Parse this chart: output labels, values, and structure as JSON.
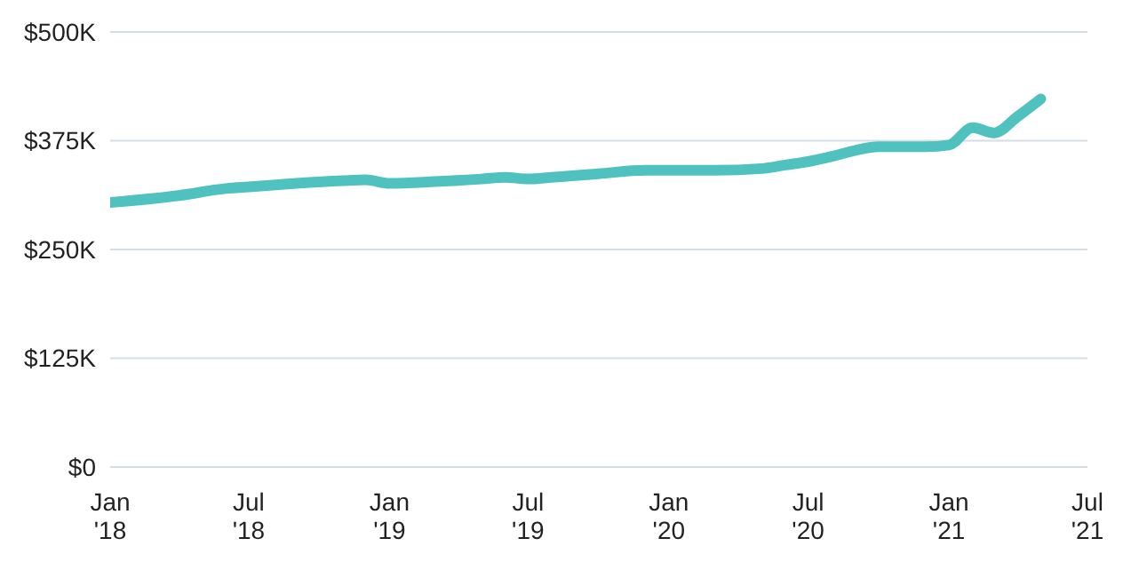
{
  "chart_data": {
    "type": "line",
    "x": [
      "2018-01",
      "2018-04",
      "2018-06",
      "2018-07",
      "2018-09",
      "2018-11",
      "2018-12",
      "2019-01",
      "2019-03",
      "2019-05",
      "2019-06",
      "2019-07",
      "2019-08",
      "2019-10",
      "2019-12",
      "2020-01",
      "2020-03",
      "2020-05",
      "2020-06",
      "2020-07",
      "2020-08",
      "2020-09",
      "2020-10",
      "2020-11",
      "2020-12",
      "2021-01",
      "2021-02",
      "2021-03",
      "2021-04",
      "2021-05"
    ],
    "series": [
      {
        "color": "#4fc1bf",
        "values": [
          304000,
          312000,
          320000,
          322000,
          326000,
          329000,
          330000,
          326000,
          328000,
          331000,
          333000,
          331000,
          333000,
          337000,
          341000,
          341000,
          341000,
          343000,
          347000,
          351000,
          357000,
          364000,
          368000,
          368000,
          368000,
          370000,
          390000,
          384000,
          403000,
          423000
        ]
      }
    ],
    "xlim": [
      "2018-01",
      "2021-07"
    ],
    "xticks": [
      {
        "value": "2018-01",
        "label": "Jan '18"
      },
      {
        "value": "2018-07",
        "label": "Jul '18"
      },
      {
        "value": "2019-01",
        "label": "Jan '19"
      },
      {
        "value": "2019-07",
        "label": "Jul '19"
      },
      {
        "value": "2020-01",
        "label": "Jan '20"
      },
      {
        "value": "2020-07",
        "label": "Jul '20"
      },
      {
        "value": "2021-01",
        "label": "Jan '21"
      },
      {
        "value": "2021-07",
        "label": "Jul '21"
      }
    ],
    "ylim": [
      0,
      500000
    ],
    "yticks": [
      {
        "value": 0,
        "label": "$0"
      },
      {
        "value": 125000,
        "label": "$125K"
      },
      {
        "value": 250000,
        "label": "$250K"
      },
      {
        "value": 375000,
        "label": "$375K"
      },
      {
        "value": 500000,
        "label": "$500K"
      }
    ],
    "grid": "y",
    "marker": "none",
    "line_style": "solid"
  }
}
